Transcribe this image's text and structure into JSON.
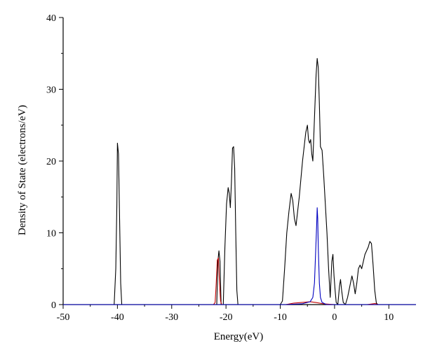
{
  "chart_data": {
    "type": "line",
    "title": "",
    "xlabel": "Energy(eV)",
    "ylabel": "Density of State (electrons/eV)",
    "xlim": [
      -50,
      15
    ],
    "ylim": [
      0,
      40
    ],
    "x_ticks": [
      -50,
      -40,
      -30,
      -20,
      -10,
      0,
      10
    ],
    "y_ticks": [
      0,
      10,
      20,
      30,
      40
    ],
    "grid": false,
    "legend": "none",
    "series": [
      {
        "color": "#000000",
        "points": [
          [
            -50,
            0
          ],
          [
            -40.6,
            0
          ],
          [
            -40.3,
            5
          ],
          [
            -40.1,
            14
          ],
          [
            -40.0,
            22.5
          ],
          [
            -39.8,
            21
          ],
          [
            -39.6,
            12
          ],
          [
            -39.4,
            3
          ],
          [
            -39.2,
            0
          ],
          [
            -22.5,
            0
          ],
          [
            -21.7,
            0
          ],
          [
            -21.5,
            6
          ],
          [
            -21.3,
            7.5
          ],
          [
            -21.1,
            6
          ],
          [
            -20.9,
            0
          ],
          [
            -20.5,
            0
          ],
          [
            -20.2,
            8
          ],
          [
            -19.9,
            14
          ],
          [
            -19.6,
            16.3
          ],
          [
            -19.4,
            15.5
          ],
          [
            -19.2,
            13.5
          ],
          [
            -19.0,
            17
          ],
          [
            -18.8,
            21.8
          ],
          [
            -18.6,
            22
          ],
          [
            -18.4,
            19
          ],
          [
            -18.2,
            10
          ],
          [
            -18.0,
            2
          ],
          [
            -17.8,
            0
          ],
          [
            -10.0,
            0
          ],
          [
            -9.6,
            0.5
          ],
          [
            -9.2,
            5
          ],
          [
            -8.8,
            10
          ],
          [
            -8.4,
            13
          ],
          [
            -8.0,
            15.5
          ],
          [
            -7.7,
            14.5
          ],
          [
            -7.4,
            12
          ],
          [
            -7.1,
            11
          ],
          [
            -6.8,
            13
          ],
          [
            -6.5,
            15
          ],
          [
            -6.2,
            17.5
          ],
          [
            -5.9,
            20
          ],
          [
            -5.6,
            22
          ],
          [
            -5.3,
            24
          ],
          [
            -5.0,
            25
          ],
          [
            -4.8,
            23
          ],
          [
            -4.6,
            22.5
          ],
          [
            -4.4,
            23
          ],
          [
            -4.2,
            21
          ],
          [
            -4.0,
            20
          ],
          [
            -3.8,
            24
          ],
          [
            -3.6,
            28
          ],
          [
            -3.4,
            32
          ],
          [
            -3.2,
            34.3
          ],
          [
            -3.0,
            33
          ],
          [
            -2.8,
            28
          ],
          [
            -2.6,
            22
          ],
          [
            -2.3,
            21.5
          ],
          [
            -2.0,
            18
          ],
          [
            -1.7,
            14
          ],
          [
            -1.4,
            10
          ],
          [
            -1.1,
            5
          ],
          [
            -0.8,
            1
          ],
          [
            -0.5,
            6
          ],
          [
            -0.3,
            7
          ],
          [
            -0.1,
            4
          ],
          [
            0.1,
            2
          ],
          [
            0.3,
            0.3
          ],
          [
            0.6,
            0
          ],
          [
            0.9,
            2.5
          ],
          [
            1.1,
            3.5
          ],
          [
            1.3,
            2
          ],
          [
            1.6,
            0.3
          ],
          [
            2.0,
            0
          ],
          [
            2.4,
            1
          ],
          [
            2.8,
            2.5
          ],
          [
            3.2,
            4
          ],
          [
            3.5,
            3
          ],
          [
            3.8,
            1.5
          ],
          [
            4.1,
            3
          ],
          [
            4.4,
            5
          ],
          [
            4.7,
            5.5
          ],
          [
            5.0,
            5
          ],
          [
            5.3,
            6
          ],
          [
            5.6,
            7
          ],
          [
            5.9,
            7.5
          ],
          [
            6.2,
            8
          ],
          [
            6.5,
            8.8
          ],
          [
            6.8,
            8.5
          ],
          [
            7.1,
            5.5
          ],
          [
            7.4,
            2
          ],
          [
            7.7,
            0.2
          ],
          [
            8.0,
            0
          ],
          [
            15,
            0
          ]
        ]
      },
      {
        "color": "#c00000",
        "points": [
          [
            -50,
            0
          ],
          [
            -22.3,
            0
          ],
          [
            -22.0,
            0.3
          ],
          [
            -21.8,
            3
          ],
          [
            -21.6,
            6.2
          ],
          [
            -21.4,
            6.5
          ],
          [
            -21.2,
            3
          ],
          [
            -21.0,
            0.5
          ],
          [
            -20.8,
            0
          ],
          [
            -9.0,
            0
          ],
          [
            -7.5,
            0.2
          ],
          [
            -6.0,
            0.3
          ],
          [
            -4.5,
            0.4
          ],
          [
            -3.5,
            0.3
          ],
          [
            -2.0,
            0.1
          ],
          [
            0,
            0
          ],
          [
            6.0,
            0
          ],
          [
            7.5,
            0.15
          ],
          [
            8.0,
            0
          ],
          [
            15,
            0
          ]
        ]
      },
      {
        "color": "#0000c0",
        "points": [
          [
            -50,
            0
          ],
          [
            -9.0,
            0
          ],
          [
            -6.0,
            0.1
          ],
          [
            -4.5,
            0.4
          ],
          [
            -4.0,
            1
          ],
          [
            -3.7,
            3
          ],
          [
            -3.5,
            7
          ],
          [
            -3.3,
            11
          ],
          [
            -3.2,
            13.5
          ],
          [
            -3.1,
            12
          ],
          [
            -3.0,
            8
          ],
          [
            -2.8,
            3
          ],
          [
            -2.6,
            1
          ],
          [
            -2.3,
            0.3
          ],
          [
            -1.5,
            0
          ],
          [
            15,
            0
          ]
        ]
      }
    ]
  }
}
